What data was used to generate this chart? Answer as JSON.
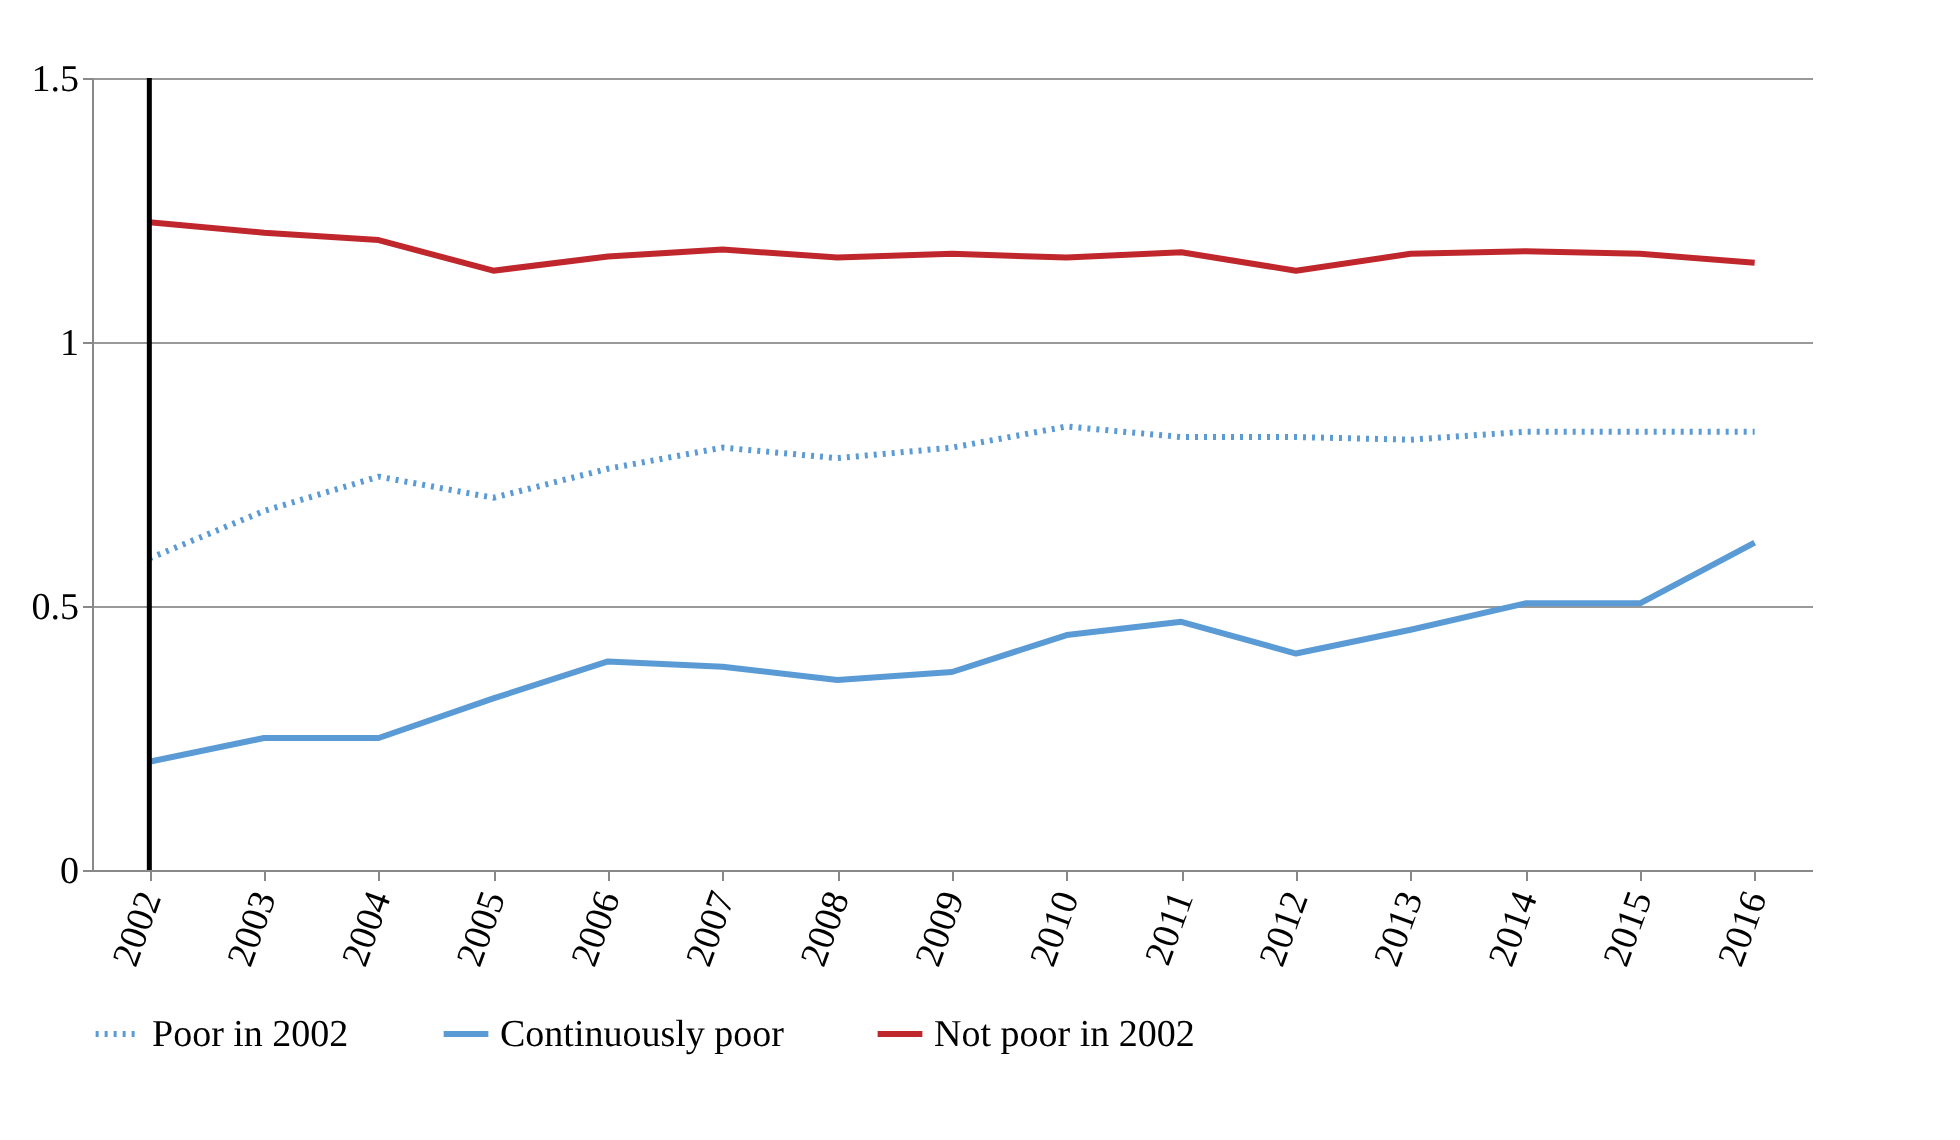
{
  "chart_data": {
    "type": "line",
    "categories": [
      "2002",
      "2003",
      "2004",
      "2005",
      "2006",
      "2007",
      "2008",
      "2009",
      "2010",
      "2011",
      "2012",
      "2013",
      "2014",
      "2015",
      "2016"
    ],
    "series": [
      {
        "name": "Poor in 2002",
        "color": "#5b9bd5",
        "line_style": "dotted",
        "values": [
          0.59,
          0.68,
          0.745,
          0.705,
          0.76,
          0.8,
          0.78,
          0.8,
          0.84,
          0.82,
          0.82,
          0.815,
          0.83,
          0.83,
          0.83
        ]
      },
      {
        "name": "Continuously poor",
        "color": "#5b9bd5",
        "line_style": "solid",
        "values": [
          0.205,
          0.25,
          0.25,
          0.325,
          0.395,
          0.385,
          0.36,
          0.375,
          0.445,
          0.47,
          0.41,
          0.455,
          0.505,
          0.505,
          0.62
        ]
      },
      {
        "name": "Not poor in 2002",
        "color": "#c0272d",
        "line_style": "solid",
        "values": [
          1.227,
          1.207,
          1.193,
          1.135,
          1.162,
          1.175,
          1.16,
          1.167,
          1.16,
          1.17,
          1.135,
          1.167,
          1.172,
          1.167,
          1.15
        ]
      }
    ],
    "ylim": [
      0,
      1.5
    ],
    "yticks": [
      0,
      0.5,
      1,
      1.5
    ],
    "grid": "y",
    "legend": "bottom",
    "ref_lines": [
      {
        "axis": "x",
        "value": "2002",
        "color": "#000000"
      }
    ]
  }
}
